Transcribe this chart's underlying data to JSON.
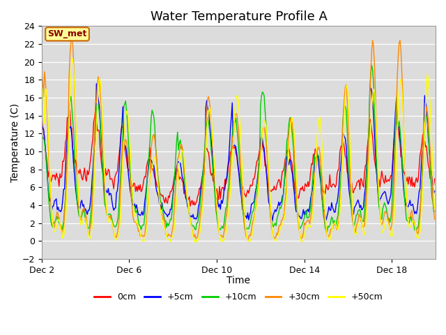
{
  "title": "Water Temperature Profile A",
  "xlabel": "Time",
  "ylabel": "Temperature (C)",
  "ylim": [
    -2,
    24
  ],
  "yticks": [
    -2,
    0,
    2,
    4,
    6,
    8,
    10,
    12,
    14,
    16,
    18,
    20,
    22,
    24
  ],
  "xtick_labels": [
    "Dec 2",
    "Dec 6",
    "Dec 10",
    "Dec 14",
    "Dec 18"
  ],
  "legend_labels": [
    "0cm",
    "+5cm",
    "+10cm",
    "+30cm",
    "+50cm"
  ],
  "legend_colors": [
    "#ff0000",
    "#0000ff",
    "#00cc00",
    "#ff8800",
    "#ffff00"
  ],
  "annotation_text": "SW_met",
  "annotation_bg": "#ffff99",
  "annotation_border_color": "#cc6600",
  "annotation_text_color": "#8b0000",
  "title_fontsize": 13,
  "axis_label_fontsize": 10,
  "tick_fontsize": 9,
  "legend_fontsize": 9,
  "n_days": 18,
  "seed": 7
}
